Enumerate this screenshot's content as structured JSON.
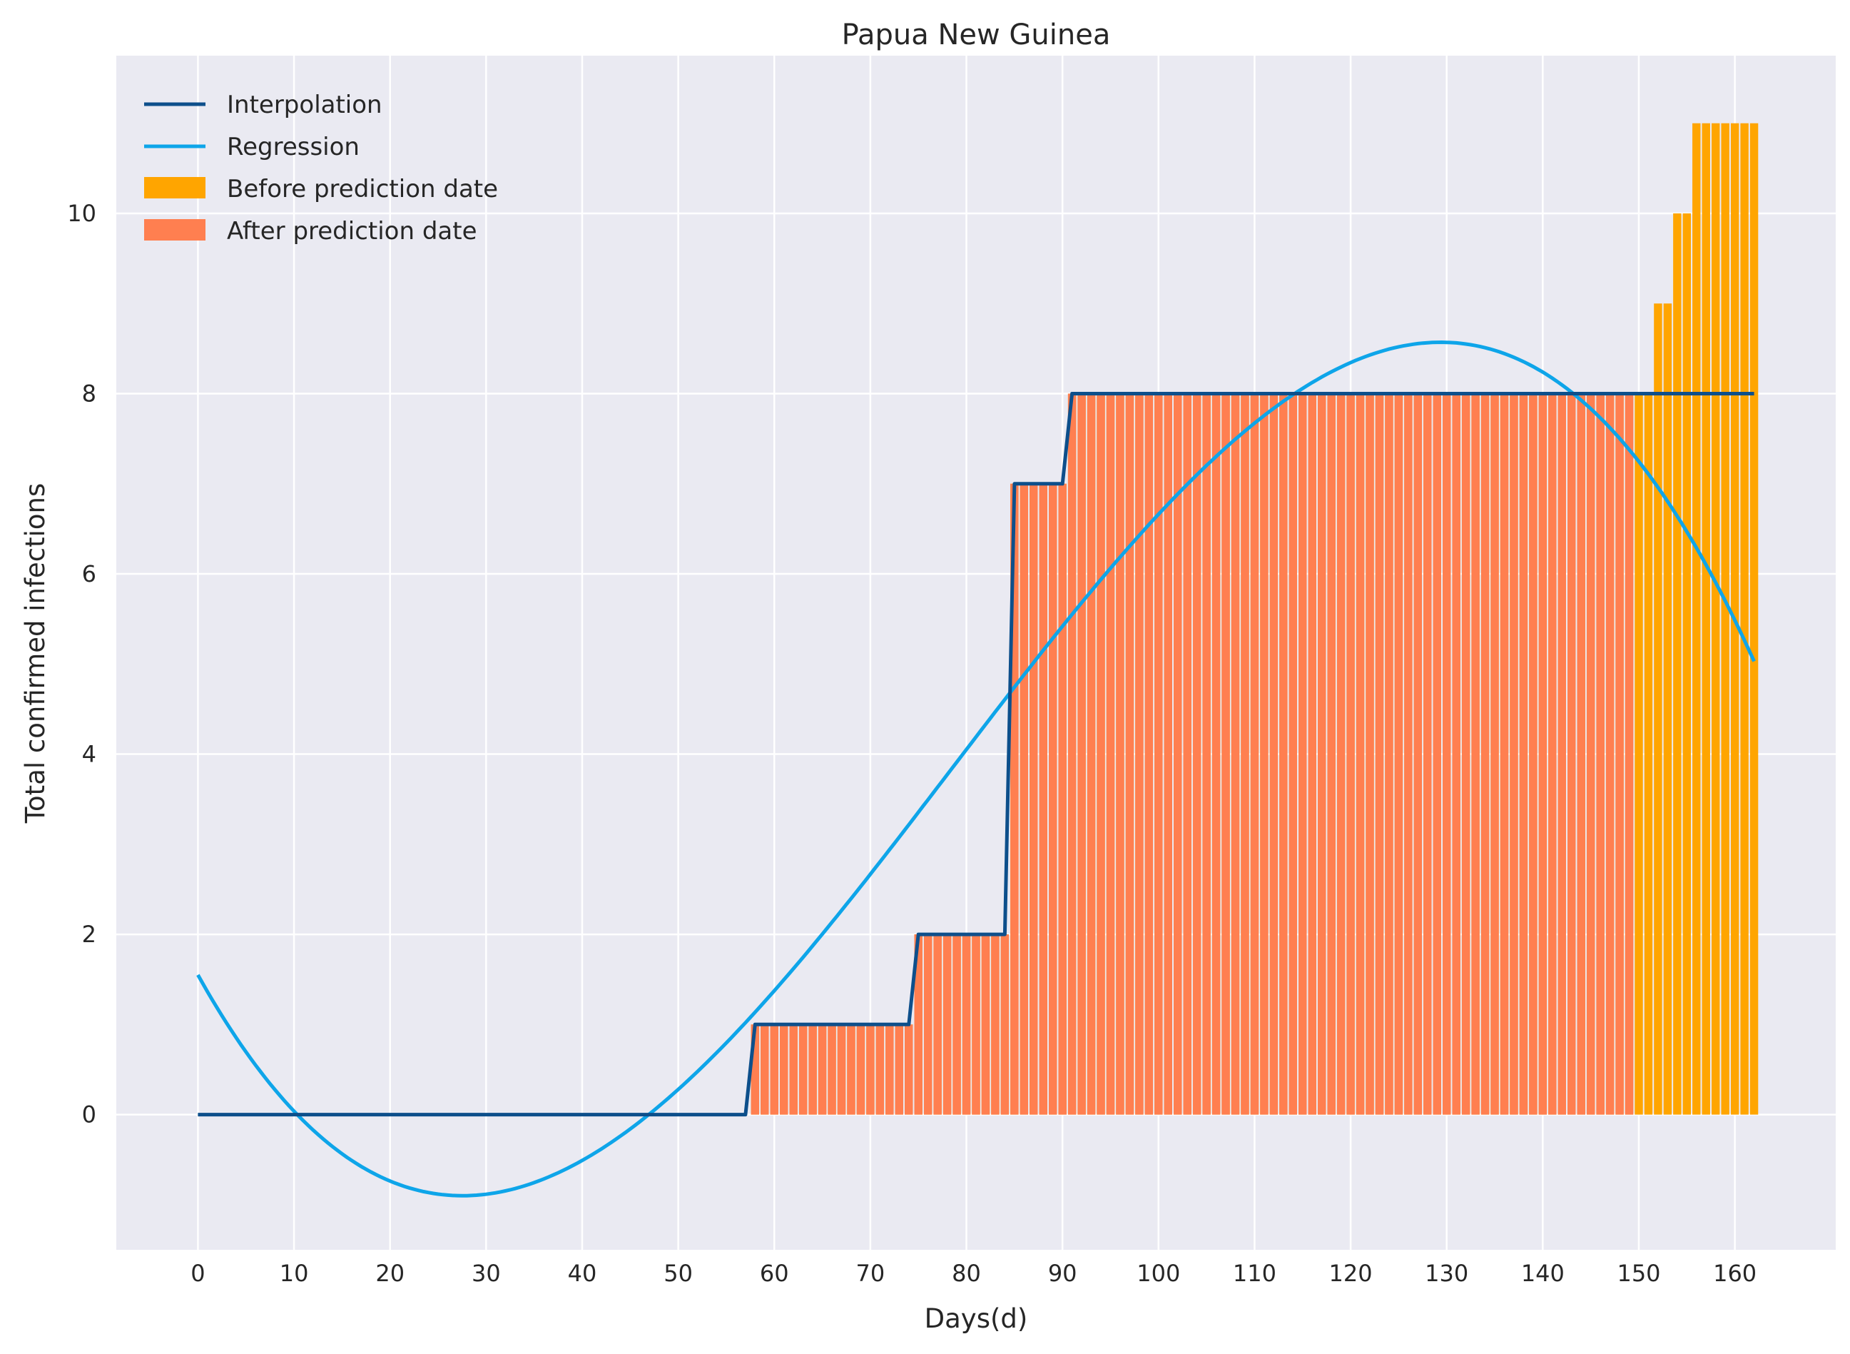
{
  "chart_data": {
    "type": "bar",
    "title": "Papua New Guinea",
    "xlabel": "Days(d)",
    "ylabel": "Total confirmed infections",
    "xlim": [
      -8.5,
      170.5
    ],
    "ylim": [
      -1.5,
      11.75
    ],
    "x_ticks": [
      0,
      10,
      20,
      30,
      40,
      50,
      60,
      70,
      80,
      90,
      100,
      110,
      120,
      130,
      140,
      150,
      160
    ],
    "y_ticks": [
      0,
      2,
      4,
      6,
      8,
      10
    ],
    "grid": true,
    "legend_position": "top-left",
    "colors": {
      "background": "#eaeaf2",
      "grid": "#ffffff",
      "interpolation": "#0d4f8b",
      "regression": "#0ea5e9",
      "before_prediction": "#ffa500",
      "after_prediction": "#ff7f50"
    },
    "series": [
      {
        "name": "Interpolation",
        "kind": "line",
        "step_points": [
          [
            0,
            0
          ],
          [
            57,
            0
          ],
          [
            58,
            1
          ],
          [
            74,
            1
          ],
          [
            75,
            2
          ],
          [
            84,
            2
          ],
          [
            85,
            7
          ],
          [
            90,
            7
          ],
          [
            91,
            8
          ],
          [
            162,
            8
          ]
        ]
      },
      {
        "name": "Regression",
        "kind": "line",
        "samples": {
          "x0": 0,
          "x1": 162,
          "step": 2
        },
        "points": [
          [
            0,
            1.55
          ],
          [
            10,
            0.0
          ],
          [
            20,
            -0.75
          ],
          [
            27.5,
            -0.9
          ],
          [
            47,
            0.0
          ],
          [
            58,
            1.2
          ],
          [
            70,
            2.8
          ],
          [
            85,
            4.8
          ],
          [
            100,
            6.75
          ],
          [
            115,
            8.07
          ],
          [
            129.5,
            8.57
          ],
          [
            143,
            8.0
          ],
          [
            150,
            7.4
          ],
          [
            162,
            5.03
          ]
        ]
      },
      {
        "name": "Before prediction date",
        "kind": "bar",
        "steps": [
          [
            58,
            1
          ],
          [
            75,
            2
          ],
          [
            85,
            7
          ],
          [
            91,
            8
          ],
          [
            152,
            9
          ],
          [
            154,
            10
          ],
          [
            156,
            11
          ]
        ],
        "x_range": [
          58,
          162
        ]
      },
      {
        "name": "After prediction date",
        "kind": "bar",
        "steps": [
          [
            58,
            1
          ],
          [
            75,
            2
          ],
          [
            85,
            7
          ],
          [
            91,
            8
          ]
        ],
        "x_range": [
          58,
          149
        ]
      }
    ],
    "legend": [
      "Interpolation",
      "Regression",
      "Before prediction date",
      "After prediction date"
    ]
  }
}
